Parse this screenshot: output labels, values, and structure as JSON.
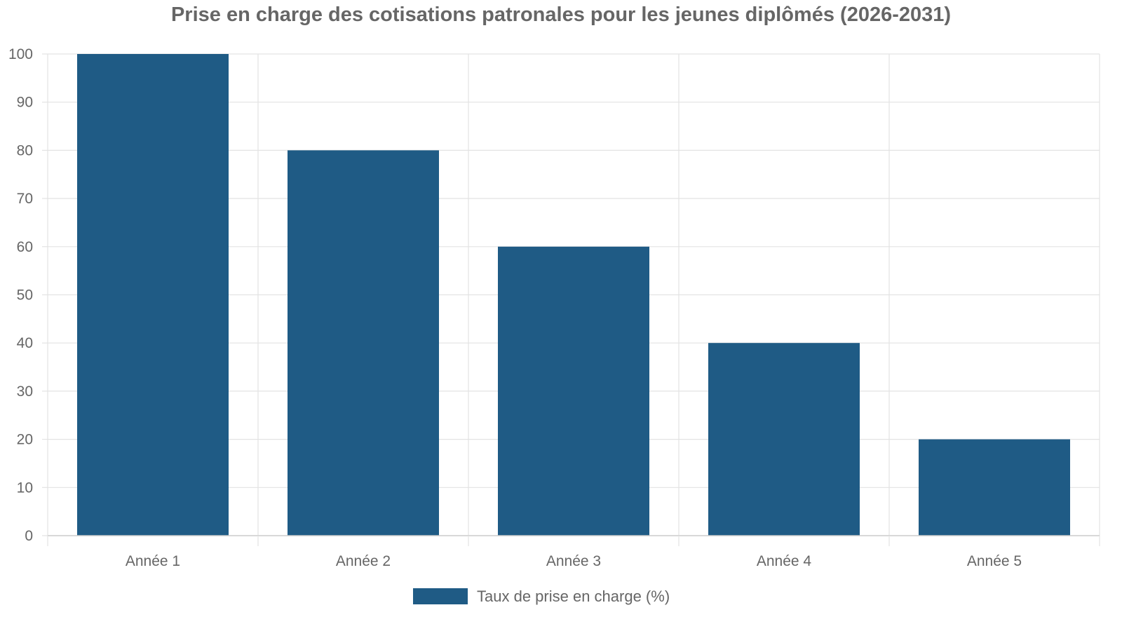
{
  "chart_data": {
    "type": "bar",
    "title": "Prise en charge des cotisations patronales pour les jeunes diplômés (2026-2031)",
    "categories": [
      "Année 1",
      "Année 2",
      "Année 3",
      "Année 4",
      "Année 5"
    ],
    "series": [
      {
        "name": "Taux de prise en charge (%)",
        "values": [
          100,
          80,
          60,
          40,
          20
        ],
        "color": "#1f5b85"
      }
    ],
    "xlabel": "",
    "ylabel": "",
    "ylim": [
      0,
      100
    ],
    "yticks": [
      0,
      10,
      20,
      30,
      40,
      50,
      60,
      70,
      80,
      90,
      100
    ],
    "grid": true,
    "legend": "bottom-center"
  },
  "colors": {
    "grid": "#e3e3e3",
    "axis": "#cccccc",
    "text": "#666666"
  }
}
